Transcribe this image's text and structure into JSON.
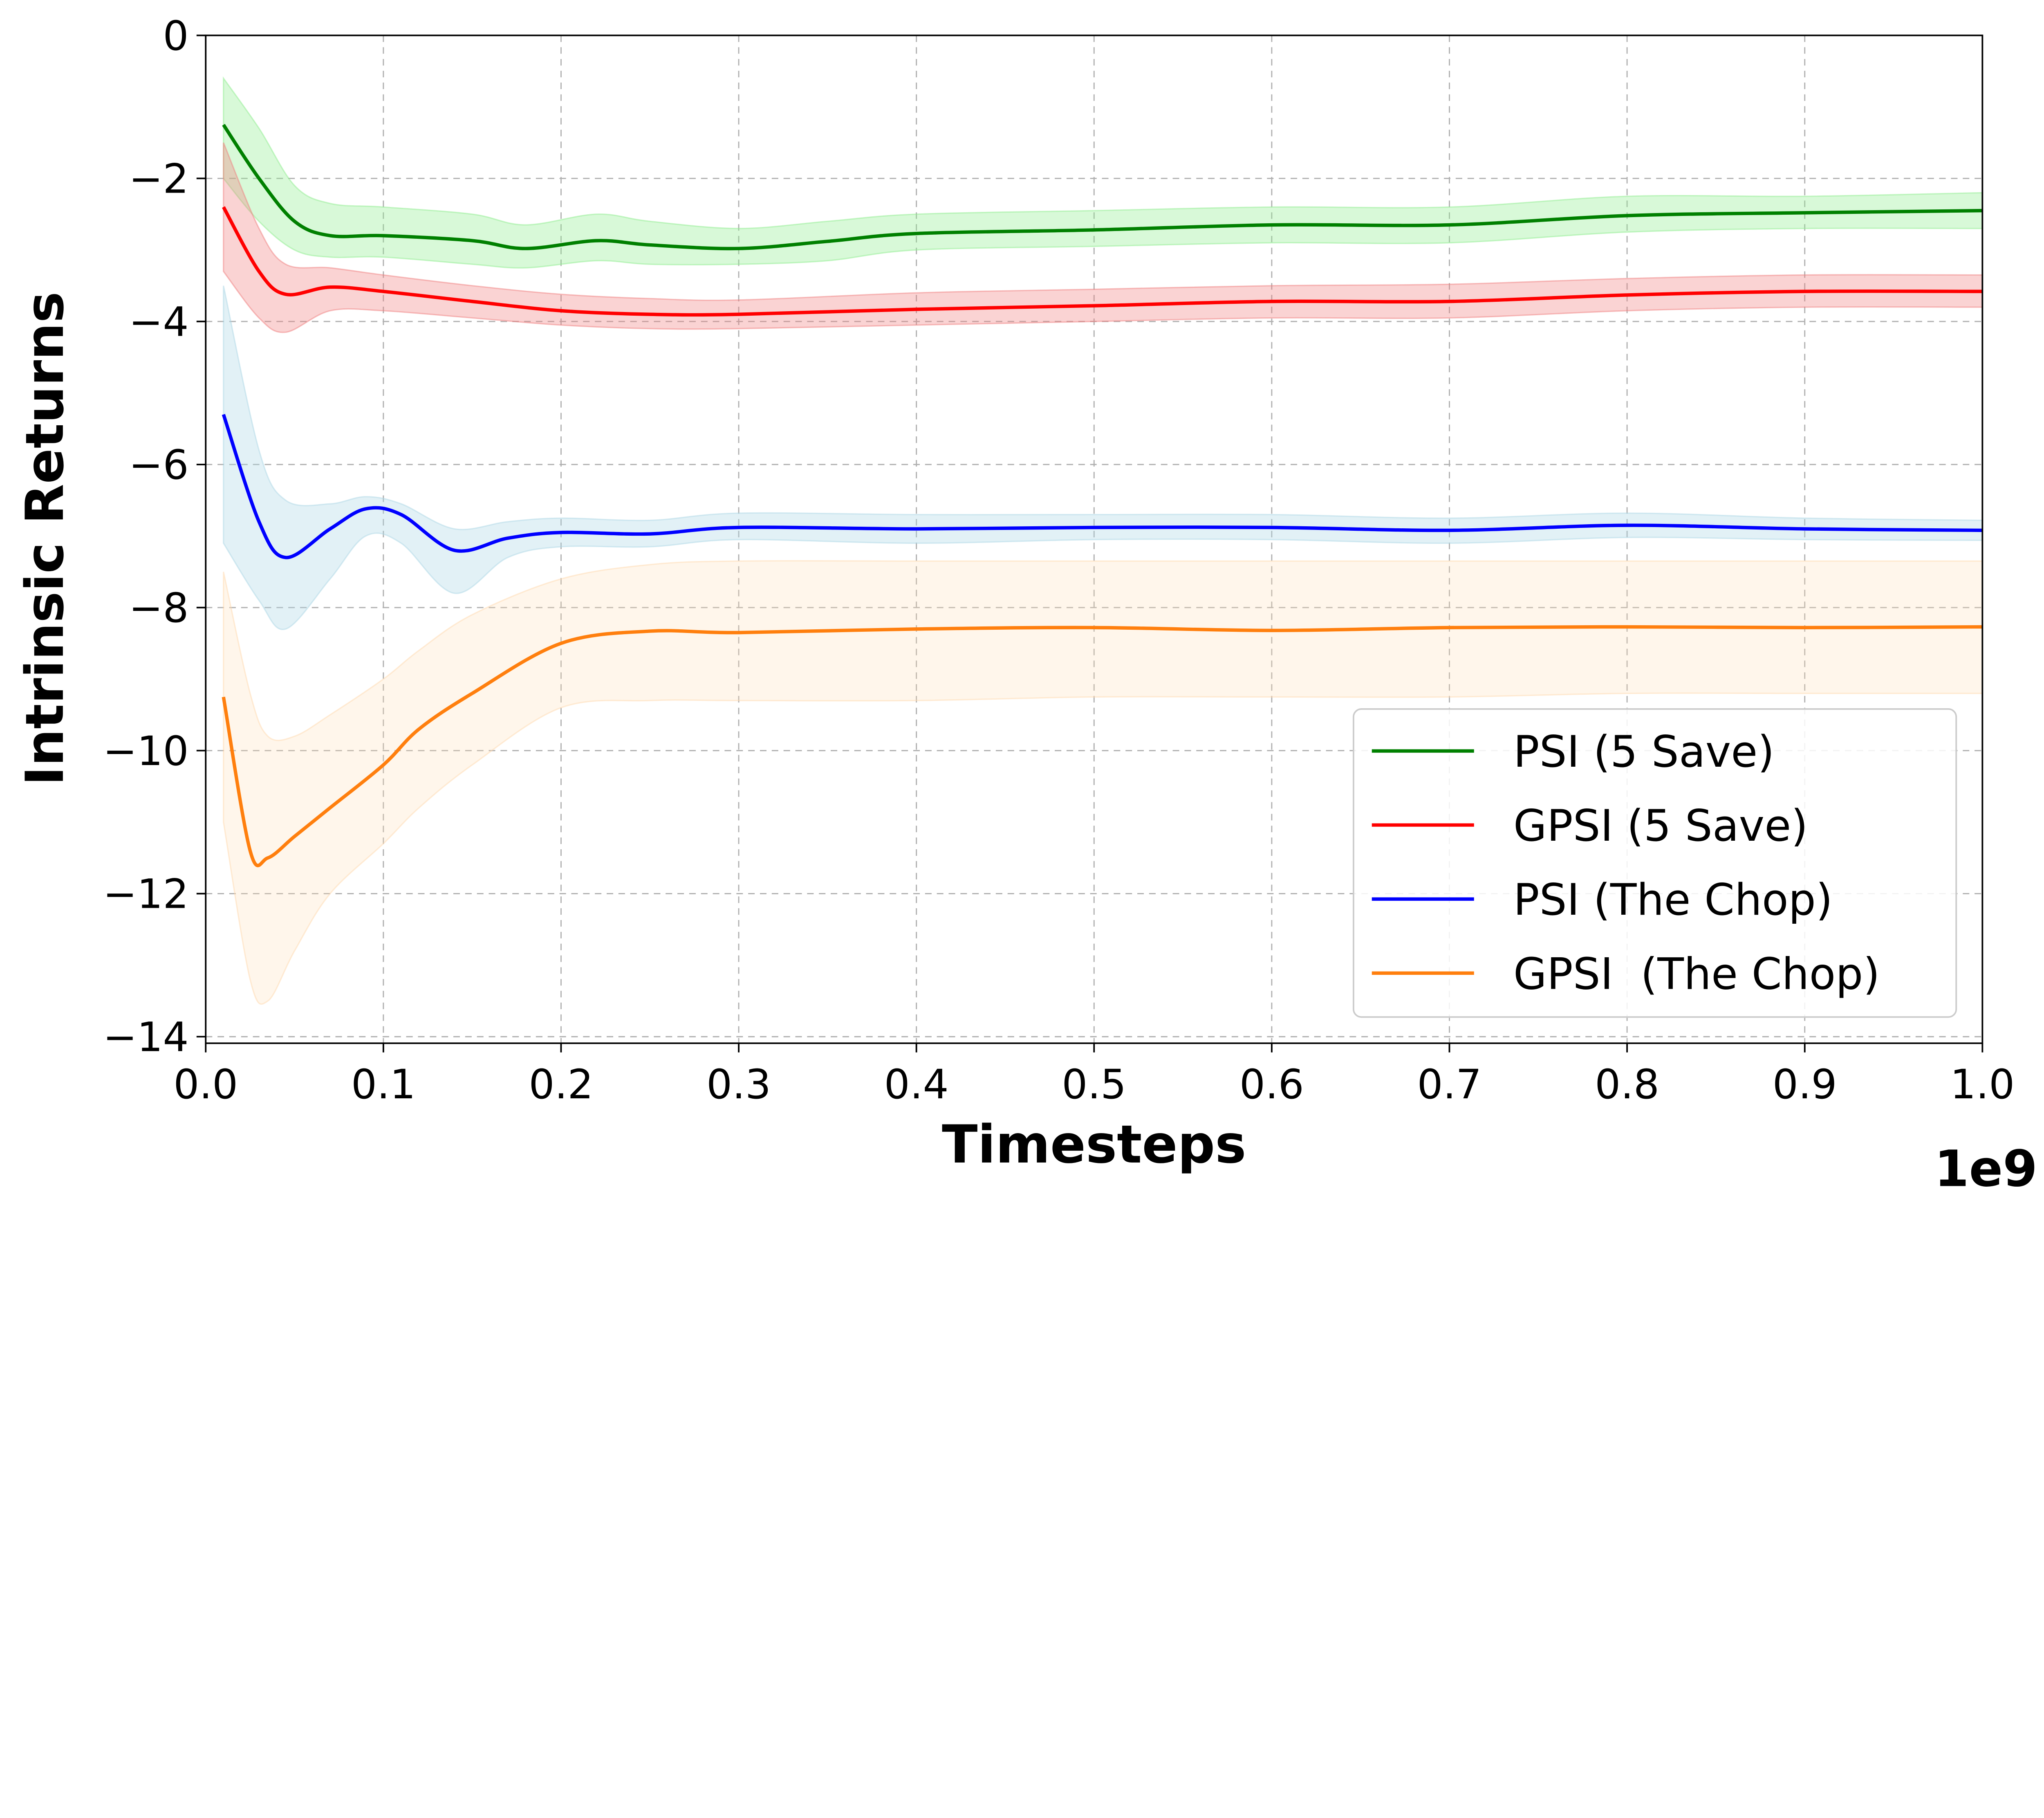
{
  "chart_data": {
    "type": "line",
    "title": "",
    "xlabel": "Timesteps",
    "ylabel": "Intrinsic Returns",
    "x_offset_label": "1e9",
    "xlim": [
      0.0,
      1.0
    ],
    "ylim": [
      -14,
      0
    ],
    "xticks": [
      "0.0",
      "0.1",
      "0.2",
      "0.3",
      "0.4",
      "0.5",
      "0.6",
      "0.7",
      "0.8",
      "0.9",
      "1.0"
    ],
    "yticks": [
      "0",
      "−2",
      "−4",
      "−6",
      "−8",
      "−10",
      "−12",
      "−14"
    ],
    "ytick_values": [
      0,
      -2,
      -4,
      -6,
      -8,
      -10,
      -12,
      -14
    ],
    "grid": true,
    "legend_position": "lower-right",
    "series": [
      {
        "name": "PSI (5 Save)",
        "color": "#008000",
        "band_color": "#90ee90",
        "x": [
          0.01,
          0.03,
          0.05,
          0.07,
          0.1,
          0.15,
          0.18,
          0.22,
          0.25,
          0.3,
          0.35,
          0.4,
          0.5,
          0.6,
          0.7,
          0.8,
          0.9,
          1.0
        ],
        "y": [
          -1.25,
          -2.0,
          -2.6,
          -2.8,
          -2.8,
          -2.87,
          -2.98,
          -2.87,
          -2.93,
          -2.98,
          -2.88,
          -2.77,
          -2.72,
          -2.65,
          -2.65,
          -2.52,
          -2.48,
          -2.45
        ],
        "upper": [
          -0.6,
          -1.3,
          -2.1,
          -2.35,
          -2.4,
          -2.5,
          -2.65,
          -2.5,
          -2.6,
          -2.7,
          -2.6,
          -2.5,
          -2.45,
          -2.4,
          -2.4,
          -2.25,
          -2.25,
          -2.2
        ],
        "lower": [
          -2.0,
          -2.6,
          -3.0,
          -3.1,
          -3.1,
          -3.2,
          -3.25,
          -3.15,
          -3.2,
          -3.2,
          -3.15,
          -3.0,
          -2.95,
          -2.9,
          -2.9,
          -2.75,
          -2.7,
          -2.7
        ]
      },
      {
        "name": "GPSI (5 Save)",
        "color": "#ff0000",
        "band_color": "#f08080",
        "x": [
          0.01,
          0.03,
          0.045,
          0.07,
          0.1,
          0.15,
          0.2,
          0.25,
          0.3,
          0.4,
          0.5,
          0.6,
          0.7,
          0.8,
          0.9,
          1.0
        ],
        "y": [
          -2.4,
          -3.3,
          -3.62,
          -3.52,
          -3.58,
          -3.72,
          -3.85,
          -3.9,
          -3.9,
          -3.83,
          -3.78,
          -3.72,
          -3.72,
          -3.63,
          -3.58,
          -3.58
        ],
        "upper": [
          -1.5,
          -2.7,
          -3.2,
          -3.25,
          -3.35,
          -3.5,
          -3.62,
          -3.68,
          -3.7,
          -3.6,
          -3.55,
          -3.5,
          -3.48,
          -3.4,
          -3.35,
          -3.35
        ],
        "lower": [
          -3.3,
          -3.95,
          -4.15,
          -3.85,
          -3.85,
          -3.95,
          -4.05,
          -4.1,
          -4.1,
          -4.05,
          -4.0,
          -3.95,
          -3.95,
          -3.85,
          -3.8,
          -3.8
        ]
      },
      {
        "name": "PSI (The Chop)",
        "color": "#0000ff",
        "band_color": "#add8e6",
        "x": [
          0.01,
          0.03,
          0.045,
          0.07,
          0.09,
          0.11,
          0.14,
          0.17,
          0.2,
          0.25,
          0.3,
          0.4,
          0.5,
          0.6,
          0.7,
          0.8,
          0.9,
          1.0
        ],
        "y": [
          -5.3,
          -6.8,
          -7.3,
          -6.9,
          -6.62,
          -6.7,
          -7.2,
          -7.03,
          -6.95,
          -6.97,
          -6.88,
          -6.9,
          -6.88,
          -6.88,
          -6.92,
          -6.85,
          -6.9,
          -6.92
        ],
        "upper": [
          -3.5,
          -5.8,
          -6.5,
          -6.55,
          -6.45,
          -6.55,
          -6.9,
          -6.8,
          -6.75,
          -6.78,
          -6.68,
          -6.7,
          -6.7,
          -6.7,
          -6.75,
          -6.68,
          -6.75,
          -6.78
        ],
        "lower": [
          -7.1,
          -7.9,
          -8.3,
          -7.6,
          -7.0,
          -7.1,
          -7.8,
          -7.3,
          -7.15,
          -7.15,
          -7.05,
          -7.1,
          -7.05,
          -7.05,
          -7.1,
          -7.02,
          -7.05,
          -7.06
        ]
      },
      {
        "name": "GPSI  (The Chop)",
        "color": "#ff7f0e",
        "band_color": "#ffdab0",
        "x": [
          0.01,
          0.025,
          0.035,
          0.05,
          0.07,
          0.1,
          0.12,
          0.15,
          0.2,
          0.25,
          0.3,
          0.4,
          0.5,
          0.6,
          0.7,
          0.8,
          0.9,
          1.0
        ],
        "y": [
          -9.25,
          -11.4,
          -11.5,
          -11.2,
          -10.8,
          -10.2,
          -9.7,
          -9.2,
          -8.5,
          -8.33,
          -8.35,
          -8.3,
          -8.28,
          -8.32,
          -8.28,
          -8.27,
          -8.28,
          -8.27
        ],
        "upper": [
          -7.5,
          -9.2,
          -9.8,
          -9.8,
          -9.5,
          -9.0,
          -8.6,
          -8.1,
          -7.6,
          -7.4,
          -7.35,
          -7.35,
          -7.35,
          -7.35,
          -7.35,
          -7.35,
          -7.35,
          -7.35
        ],
        "lower": [
          -11.0,
          -13.2,
          -13.5,
          -12.8,
          -12.0,
          -11.3,
          -10.8,
          -10.2,
          -9.4,
          -9.3,
          -9.3,
          -9.3,
          -9.25,
          -9.25,
          -9.25,
          -9.2,
          -9.2,
          -9.2
        ]
      }
    ]
  }
}
